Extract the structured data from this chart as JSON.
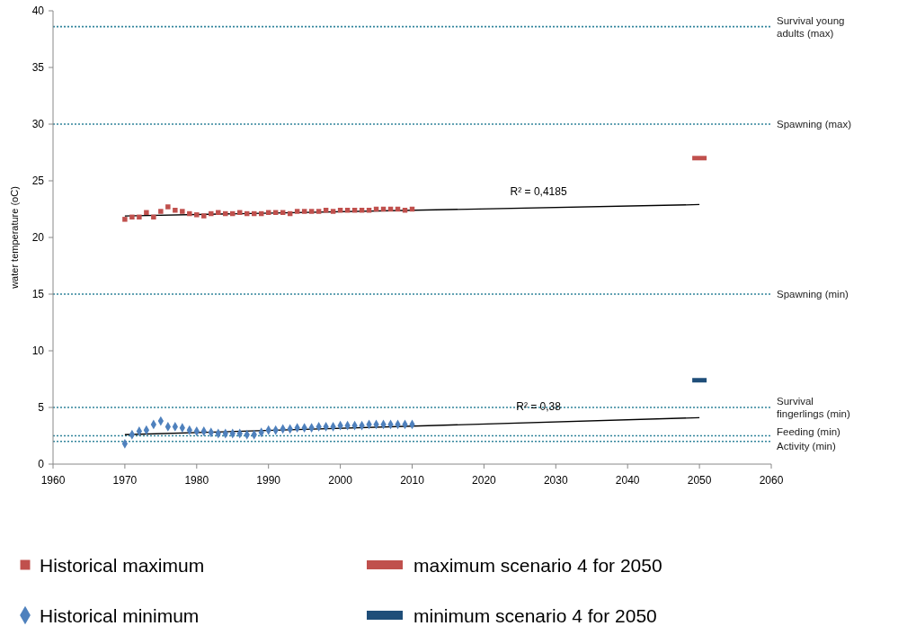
{
  "chart_data": {
    "type": "scatter",
    "ylabel": "water temperature  (oC)",
    "xlim": [
      1960,
      2060
    ],
    "xticks": [
      1960,
      1970,
      1980,
      1990,
      2000,
      2010,
      2020,
      2030,
      2040,
      2050,
      2060
    ],
    "ylim": [
      0,
      40
    ],
    "yticks": [
      0,
      5,
      10,
      15,
      20,
      25,
      30,
      35,
      40
    ],
    "grid": false,
    "legend": "bottom",
    "x": [
      1970,
      1971,
      1972,
      1973,
      1974,
      1975,
      1976,
      1977,
      1978,
      1979,
      1980,
      1981,
      1982,
      1983,
      1984,
      1985,
      1986,
      1987,
      1988,
      1989,
      1990,
      1991,
      1992,
      1993,
      1994,
      1995,
      1996,
      1997,
      1998,
      1999,
      2000,
      2001,
      2002,
      2003,
      2004,
      2005,
      2006,
      2007,
      2008,
      2009,
      2010
    ],
    "series": [
      {
        "name": "Historical maximum",
        "marker": "square",
        "color": "#c0504d",
        "values": [
          21.6,
          21.8,
          21.8,
          22.2,
          21.8,
          22.3,
          22.7,
          22.4,
          22.3,
          22.1,
          22.0,
          21.9,
          22.1,
          22.2,
          22.1,
          22.1,
          22.2,
          22.1,
          22.1,
          22.1,
          22.2,
          22.2,
          22.2,
          22.1,
          22.3,
          22.3,
          22.3,
          22.3,
          22.4,
          22.3,
          22.4,
          22.4,
          22.4,
          22.4,
          22.4,
          22.5,
          22.5,
          22.5,
          22.5,
          22.4,
          22.5
        ]
      },
      {
        "name": "Historical minimum",
        "marker": "diamond",
        "color": "#4f81bd",
        "values": [
          1.8,
          2.6,
          2.9,
          3.0,
          3.5,
          3.8,
          3.3,
          3.3,
          3.2,
          3.0,
          2.9,
          2.9,
          2.8,
          2.7,
          2.7,
          2.7,
          2.7,
          2.6,
          2.6,
          2.8,
          3.0,
          3.0,
          3.1,
          3.1,
          3.2,
          3.2,
          3.2,
          3.3,
          3.3,
          3.3,
          3.4,
          3.4,
          3.4,
          3.4,
          3.5,
          3.5,
          3.5,
          3.5,
          3.5,
          3.5,
          3.5
        ]
      },
      {
        "name": "maximum scenario 4 for 2050",
        "type": "line",
        "color": "#c0504d",
        "x": [
          2049,
          2051
        ],
        "values": [
          27.0,
          27.0
        ]
      },
      {
        "name": "minimum scenario 4 for 2050",
        "type": "line",
        "color": "#1f4e79",
        "x": [
          2049,
          2051
        ],
        "values": [
          7.4,
          7.4
        ]
      },
      {
        "type": "line",
        "color": "#000000",
        "x": [
          1970,
          2050
        ],
        "values": [
          21.9,
          22.9
        ]
      },
      {
        "type": "line",
        "color": "#000000",
        "x": [
          1970,
          2050
        ],
        "values": [
          2.6,
          4.1
        ]
      }
    ],
    "ref_lines": [
      {
        "axis": "y",
        "value": 38.6,
        "label": "Survival young adults (max)",
        "color": "#31849b",
        "line_style": "dotted"
      },
      {
        "axis": "y",
        "value": 30,
        "label": "Spawning (max)",
        "color": "#31849b",
        "line_style": "dotted"
      },
      {
        "axis": "y",
        "value": 15,
        "label": "Spawning (min)",
        "color": "#31849b",
        "line_style": "dotted"
      },
      {
        "axis": "y",
        "value": 5,
        "label": "Survival fingerlings (min)",
        "color": "#31849b",
        "line_style": "dotted"
      },
      {
        "axis": "y",
        "value": 2.5,
        "label": "Feeding (min)",
        "color": "#31849b",
        "line_style": "dotted"
      },
      {
        "axis": "y",
        "value": 2.0,
        "label": "Activity (min)",
        "color": "#31849b",
        "line_style": "dotted"
      }
    ],
    "annotations": [
      "R² = 0,4185",
      "R² = 0,38"
    ]
  }
}
